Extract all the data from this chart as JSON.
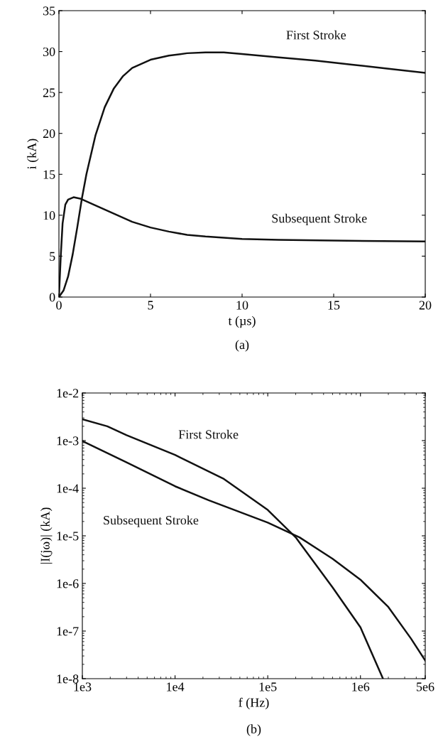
{
  "chart_data": [
    {
      "type": "line",
      "xlabel": "t (µs)",
      "ylabel": "i (kA)",
      "annotations": [
        "(a)"
      ],
      "xlim": [
        0,
        20
      ],
      "ylim": [
        0,
        35
      ],
      "xticks": [
        0,
        5,
        10,
        15,
        20
      ],
      "yticks": [
        0,
        5,
        10,
        15,
        20,
        25,
        30,
        35
      ],
      "grid": false,
      "legend": false,
      "series": [
        {
          "name": "First Stroke",
          "color": "#111111",
          "x": [
            0,
            0.25,
            0.5,
            0.75,
            1,
            1.25,
            1.5,
            2,
            2.5,
            3,
            3.5,
            4,
            5,
            6,
            7,
            8,
            9,
            10,
            12,
            14,
            16,
            18,
            20
          ],
          "values": [
            0,
            0.8,
            2.5,
            5.2,
            8.5,
            12,
            15,
            19.8,
            23.2,
            25.5,
            27,
            28,
            29,
            29.5,
            29.8,
            29.9,
            29.9,
            29.7,
            29.3,
            28.9,
            28.4,
            27.9,
            27.4
          ]
        },
        {
          "name": "Subsequent Stroke",
          "color": "#111111",
          "x": [
            0,
            0.1,
            0.2,
            0.35,
            0.5,
            0.8,
            1.2,
            2,
            3,
            4,
            5,
            6,
            7,
            8,
            10,
            12,
            15,
            20
          ],
          "values": [
            0,
            5,
            9,
            11.3,
            11.9,
            12.2,
            12,
            11.2,
            10.2,
            9.2,
            8.5,
            8,
            7.6,
            7.4,
            7.1,
            7,
            6.9,
            6.8
          ]
        }
      ]
    },
    {
      "type": "line",
      "xlabel": "f (Hz)",
      "ylabel": "|I(jω)| (kA)",
      "annotations": [
        "(b)"
      ],
      "log": "xy",
      "xlim": [
        1000,
        5000000
      ],
      "ylim": [
        1e-08,
        0.01
      ],
      "xticks": [
        {
          "value": 1000,
          "label": "1e3"
        },
        {
          "value": 10000,
          "label": "1e4"
        },
        {
          "value": 100000,
          "label": "1e5"
        },
        {
          "value": 1000000,
          "label": "1e6"
        },
        {
          "value": 5000000,
          "label": "5e6"
        }
      ],
      "yticks": [
        {
          "value": 1e-08,
          "label": "1e-8"
        },
        {
          "value": 1e-07,
          "label": "1e-7"
        },
        {
          "value": 1e-06,
          "label": "1e-6"
        },
        {
          "value": 1e-05,
          "label": "1e-5"
        },
        {
          "value": 0.0001,
          "label": "1e-4"
        },
        {
          "value": 0.001,
          "label": "1e-3"
        },
        {
          "value": 0.01,
          "label": "1e-2"
        }
      ],
      "grid": false,
      "legend": false,
      "series": [
        {
          "name": "First Stroke",
          "color": "#111111",
          "x": [
            1000,
            1860,
            3000,
            10000,
            33000,
            100000,
            200000,
            500000,
            1000000,
            1750000
          ],
          "values": [
            0.0028,
            0.002,
            0.0013,
            0.0005,
            0.00016,
            3.5e-05,
            9.3e-06,
            8.3e-07,
            1.2e-07,
            1e-08
          ]
        },
        {
          "name": "Subsequent Stroke",
          "color": "#111111",
          "x": [
            1000,
            3000,
            10000,
            23000,
            100000,
            220000,
            500000,
            1000000,
            2000000,
            3500000,
            5000000
          ],
          "values": [
            0.00098,
            0.00035,
            0.00011,
            5.6e-05,
            1.9e-05,
            9.3e-06,
            3.3e-06,
            1.2e-06,
            3.2e-07,
            7e-08,
            2.4e-08
          ]
        }
      ]
    }
  ]
}
